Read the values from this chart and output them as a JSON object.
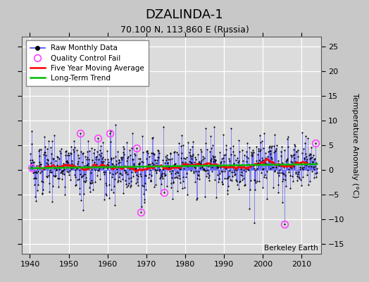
{
  "title": "DZALINDA-1",
  "subtitle": "70.100 N, 113.860 E (Russia)",
  "ylabel": "Temperature Anomaly (°C)",
  "xlim": [
    1938,
    2015
  ],
  "ylim": [
    -17,
    27
  ],
  "yticks": [
    -15,
    -10,
    -5,
    0,
    5,
    10,
    15,
    20,
    25
  ],
  "xticks": [
    1940,
    1950,
    1960,
    1970,
    1980,
    1990,
    2000,
    2010
  ],
  "fig_background": "#c8c8c8",
  "plot_background": "#dcdcdc",
  "line_color": "#4444ff",
  "marker_color": "#000000",
  "qc_color": "#ff44ff",
  "moving_avg_color": "#ff0000",
  "trend_color": "#00bb00",
  "watermark": "Berkeley Earth",
  "start_year": 1940,
  "end_year": 2013
}
